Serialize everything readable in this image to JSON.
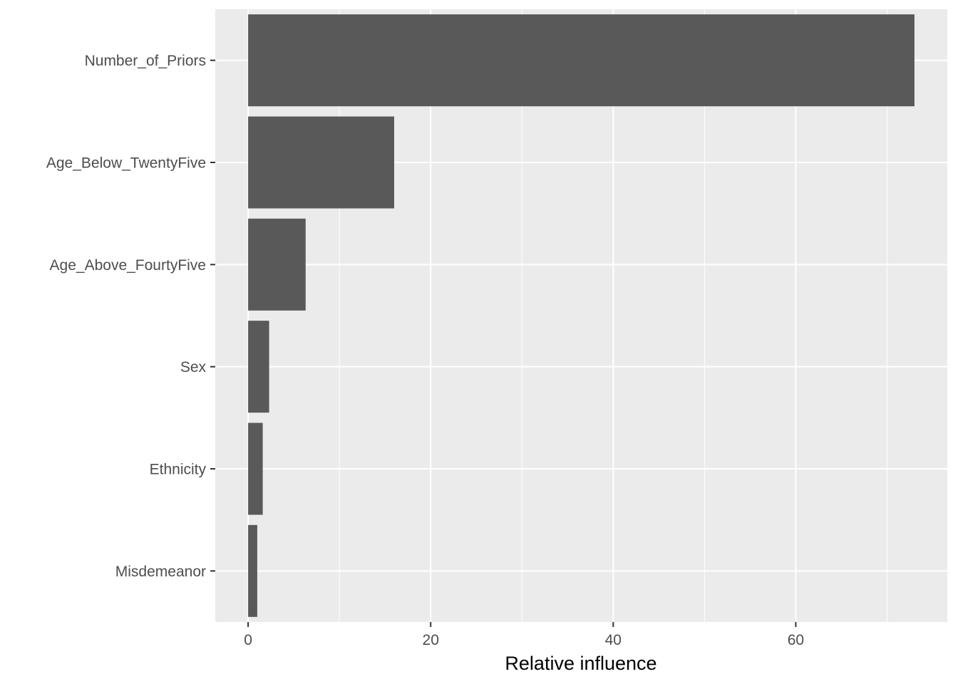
{
  "chart_data": {
    "type": "bar",
    "orientation": "horizontal",
    "categories": [
      "Number_of_Priors",
      "Age_Below_TwentyFive",
      "Age_Above_FourtyFive",
      "Sex",
      "Ethnicity",
      "Misdemeanor"
    ],
    "values": [
      73.0,
      16.0,
      6.3,
      2.3,
      1.6,
      1.0
    ],
    "title": "",
    "xlabel": "Relative influence",
    "ylabel": "",
    "xlim": [
      -3.6,
      76.6
    ],
    "x_ticks": [
      0,
      20,
      40,
      60
    ],
    "grid": true,
    "bar_color": "#595959",
    "panel_background": "#ebebeb",
    "grid_color": "#ffffff"
  }
}
